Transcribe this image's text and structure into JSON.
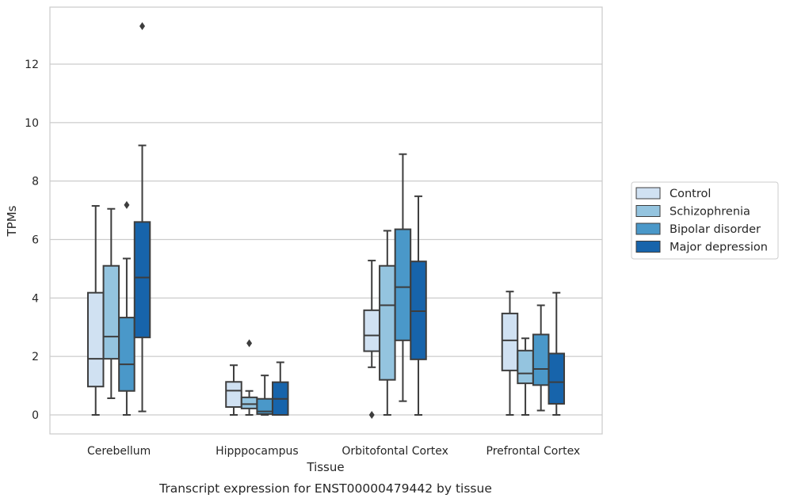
{
  "chart_data": {
    "type": "box",
    "caption": "Transcript expression for ENST00000479442 by tissue",
    "xlabel": "Tissue",
    "ylabel": "TPMs",
    "ylim": [
      -0.65,
      13.95
    ],
    "yticks": [
      0,
      2,
      4,
      6,
      8,
      10,
      12
    ],
    "grid": true,
    "legend_position": "right",
    "categories": [
      "Cerebellum",
      "Hipppocampus",
      "Orbitofontal Cortex",
      "Prefrontal Cortex"
    ],
    "series": [
      {
        "name": "Control",
        "color": "#d0e1f2",
        "boxes": [
          {
            "min": 0.0,
            "q1": 0.97,
            "median": 1.92,
            "q3": 4.18,
            "max": 7.15,
            "outliers": []
          },
          {
            "min": 0.0,
            "q1": 0.27,
            "median": 0.83,
            "q3": 1.13,
            "max": 1.7,
            "outliers": []
          },
          {
            "min": 1.63,
            "q1": 2.18,
            "median": 2.72,
            "q3": 3.58,
            "max": 5.28,
            "outliers": [
              0.0
            ]
          },
          {
            "min": 0.0,
            "q1": 1.52,
            "median": 2.55,
            "q3": 3.47,
            "max": 4.22,
            "outliers": []
          }
        ]
      },
      {
        "name": "Schizophrenia",
        "color": "#94c4df",
        "boxes": [
          {
            "min": 0.57,
            "q1": 1.92,
            "median": 2.68,
            "q3": 5.1,
            "max": 7.05,
            "outliers": []
          },
          {
            "min": 0.0,
            "q1": 0.22,
            "median": 0.37,
            "q3": 0.6,
            "max": 0.82,
            "outliers": [
              2.45
            ]
          },
          {
            "min": 0.0,
            "q1": 1.2,
            "median": 3.75,
            "q3": 5.1,
            "max": 6.3,
            "outliers": []
          },
          {
            "min": 0.0,
            "q1": 1.08,
            "median": 1.42,
            "q3": 2.2,
            "max": 2.62,
            "outliers": []
          }
        ]
      },
      {
        "name": "Bipolar disorder",
        "color": "#4a98c9",
        "boxes": [
          {
            "min": 0.0,
            "q1": 0.82,
            "median": 1.73,
            "q3": 3.33,
            "max": 5.35,
            "outliers": [
              7.18
            ]
          },
          {
            "min": 0.0,
            "q1": 0.03,
            "median": 0.12,
            "q3": 0.55,
            "max": 1.35,
            "outliers": []
          },
          {
            "min": 0.47,
            "q1": 2.55,
            "median": 4.37,
            "q3": 6.35,
            "max": 8.92,
            "outliers": []
          },
          {
            "min": 0.15,
            "q1": 1.02,
            "median": 1.57,
            "q3": 2.75,
            "max": 3.75,
            "outliers": []
          }
        ]
      },
      {
        "name": "Major depression",
        "color": "#1764ab",
        "boxes": [
          {
            "min": 0.12,
            "q1": 2.65,
            "median": 4.7,
            "q3": 6.6,
            "max": 9.22,
            "outliers": [
              13.3
            ]
          },
          {
            "min": 0.0,
            "q1": 0.0,
            "median": 0.55,
            "q3": 1.12,
            "max": 1.8,
            "outliers": []
          },
          {
            "min": 0.0,
            "q1": 1.9,
            "median": 3.55,
            "q3": 5.25,
            "max": 7.48,
            "outliers": []
          },
          {
            "min": 0.0,
            "q1": 0.38,
            "median": 1.12,
            "q3": 2.1,
            "max": 4.18,
            "outliers": []
          }
        ]
      }
    ]
  }
}
